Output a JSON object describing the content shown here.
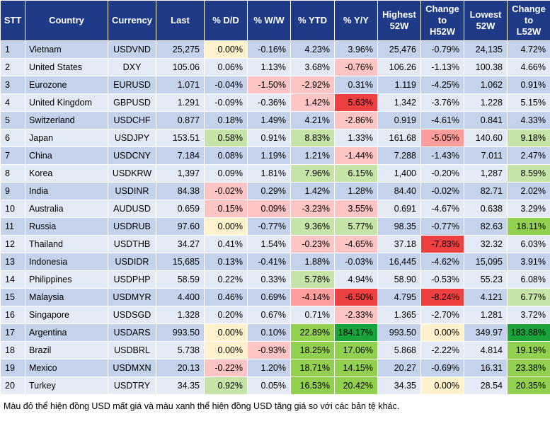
{
  "headers": [
    "STT",
    "Country",
    "Currency",
    "Last",
    "% D/D",
    "% W/W",
    "% YTD",
    "% Y/Y",
    "Highest\n52W",
    "Change\nto\nH52W",
    "Lowest\n52W",
    "Change\nto\nL52W"
  ],
  "rows": [
    {
      "stt": "1",
      "country": "Vietnam",
      "currency": "USDVND",
      "last": "25,275",
      "dd": "0.00%",
      "ww": "-0.16%",
      "ytd": "4.23%",
      "yy": "3.96%",
      "high": "25,476",
      "chg_high": "-0.79%",
      "low": "24,135",
      "chg_low": "4.72%"
    },
    {
      "stt": "2",
      "country": "United States",
      "currency": "DXY",
      "last": "105.06",
      "dd": "0.06%",
      "ww": "1.13%",
      "ytd": "3.68%",
      "yy": "-0.76%",
      "high": "106.26",
      "chg_high": "-1.13%",
      "low": "100.38",
      "chg_low": "4.66%"
    },
    {
      "stt": "3",
      "country": "Eurozone",
      "currency": "EURUSD",
      "last": "1.071",
      "dd": "-0.04%",
      "ww": "-1.50%",
      "ytd": "-2.92%",
      "yy": "0.31%",
      "high": "1.119",
      "chg_high": "-4.25%",
      "low": "1.062",
      "chg_low": "0.91%"
    },
    {
      "stt": "4",
      "country": "United Kingdom",
      "currency": "GBPUSD",
      "last": "1.291",
      "dd": "-0.09%",
      "ww": "-0.36%",
      "ytd": "1.42%",
      "yy": "5.63%",
      "high": "1.342",
      "chg_high": "-3.76%",
      "low": "1.228",
      "chg_low": "5.15%"
    },
    {
      "stt": "5",
      "country": "Switzerland",
      "currency": "USDCHF",
      "last": "0.877",
      "dd": "0.18%",
      "ww": "1.49%",
      "ytd": "4.21%",
      "yy": "-2.86%",
      "high": "0.919",
      "chg_high": "-4.61%",
      "low": "0.841",
      "chg_low": "4.33%"
    },
    {
      "stt": "6",
      "country": "Japan",
      "currency": "USDJPY",
      "last": "153.51",
      "dd": "0.58%",
      "ww": "0.91%",
      "ytd": "8.83%",
      "yy": "1.33%",
      "high": "161.68",
      "chg_high": "-5.05%",
      "low": "140.60",
      "chg_low": "9.18%"
    },
    {
      "stt": "7",
      "country": "China",
      "currency": "USDCNY",
      "last": "7.184",
      "dd": "0.08%",
      "ww": "1.19%",
      "ytd": "1.21%",
      "yy": "-1.44%",
      "high": "7.288",
      "chg_high": "-1.43%",
      "low": "7.011",
      "chg_low": "2.47%"
    },
    {
      "stt": "8",
      "country": "Korea",
      "currency": "USDKRW",
      "last": "1,397",
      "dd": "0.09%",
      "ww": "1.81%",
      "ytd": "7.96%",
      "yy": "6.15%",
      "high": "1,400",
      "chg_high": "-0.20%",
      "low": "1,287",
      "chg_low": "8.59%"
    },
    {
      "stt": "9",
      "country": "India",
      "currency": "USDINR",
      "last": "84.38",
      "dd": "-0.02%",
      "ww": "0.29%",
      "ytd": "1.42%",
      "yy": "1.28%",
      "high": "84.40",
      "chg_high": "-0.02%",
      "low": "82.71",
      "chg_low": "2.02%"
    },
    {
      "stt": "10",
      "country": "Australia",
      "currency": "AUDUSD",
      "last": "0.659",
      "dd": "0.15%",
      "ww": "0.09%",
      "ytd": "-3.23%",
      "yy": "3.55%",
      "high": "0.691",
      "chg_high": "-4.67%",
      "low": "0.638",
      "chg_low": "3.29%"
    },
    {
      "stt": "11",
      "country": "Russia",
      "currency": "USDRUB",
      "last": "97.60",
      "dd": "0.00%",
      "ww": "-0.77%",
      "ytd": "9.36%",
      "yy": "5.77%",
      "high": "98.35",
      "chg_high": "-0.77%",
      "low": "82.63",
      "chg_low": "18.11%"
    },
    {
      "stt": "12",
      "country": "Thailand",
      "currency": "USDTHB",
      "last": "34.27",
      "dd": "0.41%",
      "ww": "1.54%",
      "ytd": "-0.23%",
      "yy": "-4.65%",
      "high": "37.18",
      "chg_high": "-7.83%",
      "low": "32.32",
      "chg_low": "6.03%"
    },
    {
      "stt": "13",
      "country": "Indonesia",
      "currency": "USDIDR",
      "last": "15,685",
      "dd": "0.13%",
      "ww": "-0.41%",
      "ytd": "1.88%",
      "yy": "-0.03%",
      "high": "16,445",
      "chg_high": "-4.62%",
      "low": "15,095",
      "chg_low": "3.91%"
    },
    {
      "stt": "14",
      "country": "Philippines",
      "currency": "USDPHP",
      "last": "58.59",
      "dd": "0.22%",
      "ww": "0.33%",
      "ytd": "5.78%",
      "yy": "4.94%",
      "high": "58.90",
      "chg_high": "-0.53%",
      "low": "55.23",
      "chg_low": "6.08%"
    },
    {
      "stt": "15",
      "country": "Malaysia",
      "currency": "USDMYR",
      "last": "4.400",
      "dd": "0.46%",
      "ww": "0.69%",
      "ytd": "-4.14%",
      "yy": "-6.50%",
      "high": "4.795",
      "chg_high": "-8.24%",
      "low": "4.121",
      "chg_low": "6.77%"
    },
    {
      "stt": "16",
      "country": "Singapore",
      "currency": "USDSGD",
      "last": "1.328",
      "dd": "0.20%",
      "ww": "0.67%",
      "ytd": "0.71%",
      "yy": "-2.33%",
      "high": "1.365",
      "chg_high": "-2.70%",
      "low": "1.281",
      "chg_low": "3.72%"
    },
    {
      "stt": "17",
      "country": "Argentina",
      "currency": "USDARS",
      "last": "993.50",
      "dd": "0.00%",
      "ww": "0.10%",
      "ytd": "22.89%",
      "yy": "184.17%",
      "high": "993.50",
      "chg_high": "0.00%",
      "low": "349.97",
      "chg_low": "183.88%"
    },
    {
      "stt": "18",
      "country": "Brazil",
      "currency": "USDBRL",
      "last": "5.738",
      "dd": "0.00%",
      "ww": "-0.93%",
      "ytd": "18.25%",
      "yy": "17.06%",
      "high": "5.868",
      "chg_high": "-2.22%",
      "low": "4.814",
      "chg_low": "19.19%"
    },
    {
      "stt": "19",
      "country": "Mexico",
      "currency": "USDMXN",
      "last": "20.13",
      "dd": "-0.22%",
      "ww": "1.20%",
      "ytd": "18.71%",
      "yy": "14.15%",
      "high": "20.27",
      "chg_high": "-0.69%",
      "low": "16.31",
      "chg_low": "23.38%"
    },
    {
      "stt": "20",
      "country": "Turkey",
      "currency": "USDTRY",
      "last": "34.35",
      "dd": "0.92%",
      "ww": "0.05%",
      "ytd": "16.53%",
      "yy": "20.42%",
      "high": "34.35",
      "chg_high": "0.00%",
      "low": "28.54",
      "chg_low": "20.35%"
    }
  ],
  "footnote": "Màu đỏ thể hiện đồng USD mất giá và màu xanh thể hiện đồng USD tăng giá so với các bản tệ khác."
}
